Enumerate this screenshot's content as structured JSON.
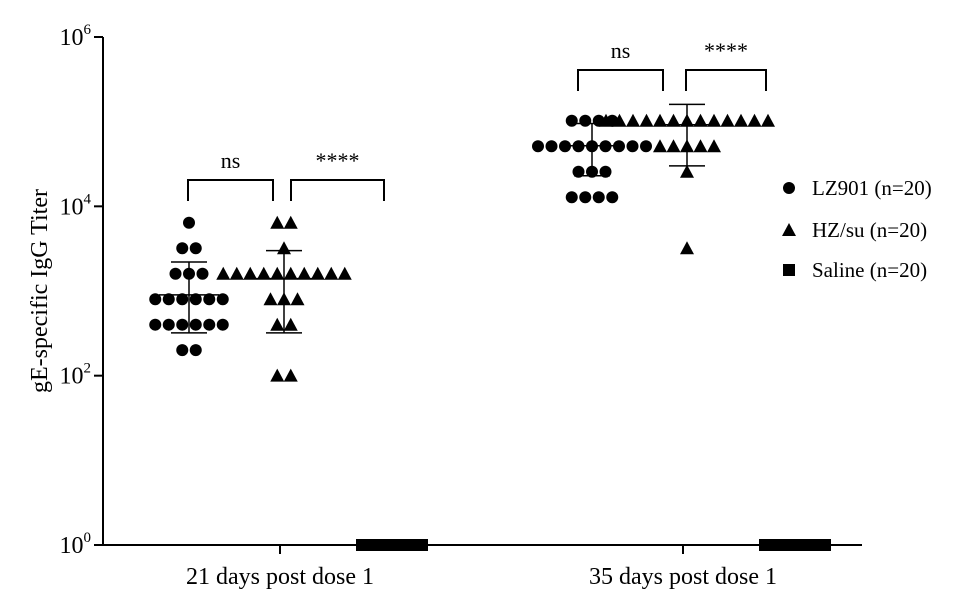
{
  "chart_data": {
    "type": "scatter",
    "ylabel": "gE-specific IgG Titer",
    "yscale": "log10",
    "ylim": [
      1,
      1000000
    ],
    "yticks": [
      {
        "value": 1,
        "base": "10",
        "exp": "0"
      },
      {
        "value": 100,
        "base": "10",
        "exp": "2"
      },
      {
        "value": 10000,
        "base": "10",
        "exp": "4"
      },
      {
        "value": 1000000,
        "base": "10",
        "exp": "6"
      }
    ],
    "categories": [
      "21 days post dose 1",
      "35 days post dose 1"
    ],
    "legend_position": "right",
    "series": [
      {
        "name": "LZ901 (n=20)",
        "marker": "circle",
        "groups": [
          {
            "values": [
              6400,
              3200,
              3200,
              1600,
              1600,
              1600,
              800,
              800,
              800,
              800,
              800,
              800,
              400,
              400,
              400,
              400,
              400,
              400,
              200,
              200
            ],
            "mean": 900,
            "sd_low": 320,
            "sd_high": 2200
          },
          {
            "values": [
              102400,
              102400,
              102400,
              102400,
              51200,
              51200,
              51200,
              51200,
              51200,
              51200,
              51200,
              51200,
              51200,
              25600,
              25600,
              25600,
              12800,
              12800,
              12800,
              12800
            ],
            "mean": 52000,
            "sd_low": 23000,
            "sd_high": 95000
          }
        ]
      },
      {
        "name": "HZ/su (n=20)",
        "marker": "triangle",
        "groups": [
          {
            "values": [
              6400,
              6400,
              3200,
              1600,
              1600,
              1600,
              1600,
              1600,
              1600,
              1600,
              1600,
              1600,
              1600,
              800,
              800,
              800,
              400,
              400,
              100,
              100
            ],
            "mean": 1400,
            "sd_low": 320,
            "sd_high": 3000
          },
          {
            "values": [
              102400,
              102400,
              102400,
              102400,
              102400,
              102400,
              102400,
              102400,
              102400,
              102400,
              102400,
              102400,
              102400,
              51200,
              51200,
              51200,
              51200,
              51200,
              25600,
              3200
            ],
            "mean": 92000,
            "sd_low": 30000,
            "sd_high": 160000
          }
        ]
      },
      {
        "name": "Saline (n=20)",
        "marker": "square",
        "groups": [
          {
            "values": [
              1,
              1,
              1,
              1,
              1,
              1,
              1,
              1,
              1,
              1,
              1,
              1,
              1,
              1,
              1,
              1,
              1,
              1,
              1,
              1
            ]
          },
          {
            "values": [
              1,
              1,
              1,
              1,
              1,
              1,
              1,
              1,
              1,
              1,
              1,
              1,
              1,
              1,
              1,
              1,
              1,
              1,
              1,
              1
            ]
          }
        ]
      }
    ],
    "comparisons": [
      {
        "category": 0,
        "from": "LZ901 (n=20)",
        "to": "HZ/su (n=20)",
        "label": "ns"
      },
      {
        "category": 0,
        "from": "HZ/su (n=20)",
        "to": "Saline (n=20)",
        "label": "****"
      },
      {
        "category": 1,
        "from": "LZ901 (n=20)",
        "to": "HZ/su (n=20)",
        "label": "ns"
      },
      {
        "category": 1,
        "from": "HZ/su (n=20)",
        "to": "Saline (n=20)",
        "label": "****"
      }
    ]
  }
}
